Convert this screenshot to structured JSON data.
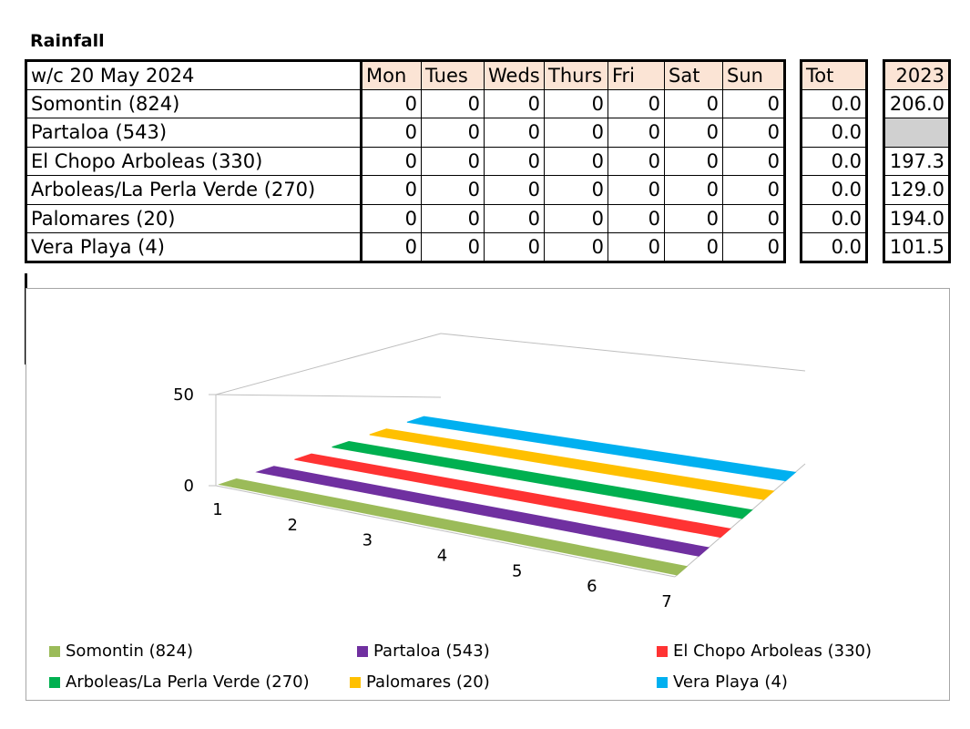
{
  "title": "Rainfall",
  "table": {
    "week_label": "w/c  20 May 2024",
    "days": [
      "Mon",
      "Tues",
      "Weds",
      "Thurs",
      "Fri",
      "Sat",
      "Sun"
    ],
    "tot_label": "Tot",
    "year_label": "2023",
    "rows": [
      {
        "name": "Somontin (824)",
        "values": [
          "0",
          "0",
          "0",
          "0",
          "0",
          "0",
          "0"
        ],
        "tot": "0.0",
        "year": "206.0"
      },
      {
        "name": "Partaloa (543)",
        "values": [
          "0",
          "0",
          "0",
          "0",
          "0",
          "0",
          "0"
        ],
        "tot": "0.0",
        "year": ""
      },
      {
        "name": "El Chopo Arboleas (330)",
        "values": [
          "0",
          "0",
          "0",
          "0",
          "0",
          "0",
          "0"
        ],
        "tot": "0.0",
        "year": "197.3"
      },
      {
        "name": "Arboleas/La Perla Verde (270)",
        "values": [
          "0",
          "0",
          "0",
          "0",
          "0",
          "0",
          "0"
        ],
        "tot": "0.0",
        "year": "129.0"
      },
      {
        "name": "Palomares (20)",
        "values": [
          "0",
          "0",
          "0",
          "0",
          "0",
          "0",
          "0"
        ],
        "tot": "0.0",
        "year": "194.0"
      },
      {
        "name": "Vera Playa (4)",
        "values": [
          "0",
          "0",
          "0",
          "0",
          "0",
          "0",
          "0"
        ],
        "tot": "0.0",
        "year": "101.5"
      }
    ]
  },
  "chart_data": {
    "type": "area",
    "x": [
      1,
      2,
      3,
      4,
      5,
      6,
      7
    ],
    "y_ticks": [
      0,
      50
    ],
    "ylim": [
      0,
      50
    ],
    "series": [
      {
        "name": "Somontin (824)",
        "color": "#9bbb59",
        "values": [
          0,
          0,
          0,
          0,
          0,
          0,
          0
        ]
      },
      {
        "name": "Partaloa (543)",
        "color": "#7030a0",
        "values": [
          0,
          0,
          0,
          0,
          0,
          0,
          0
        ]
      },
      {
        "name": "El Chopo Arboleas (330)",
        "color": "#ff3333",
        "values": [
          0,
          0,
          0,
          0,
          0,
          0,
          0
        ]
      },
      {
        "name": "Arboleas/La Perla Verde (270)",
        "color": "#00b050",
        "values": [
          0,
          0,
          0,
          0,
          0,
          0,
          0
        ]
      },
      {
        "name": "Palomares (20)",
        "color": "#ffc000",
        "values": [
          0,
          0,
          0,
          0,
          0,
          0,
          0
        ]
      },
      {
        "name": "Vera Playa (4)",
        "color": "#00b0f0",
        "values": [
          0,
          0,
          0,
          0,
          0,
          0,
          0
        ]
      }
    ],
    "legend_position": "bottom"
  }
}
